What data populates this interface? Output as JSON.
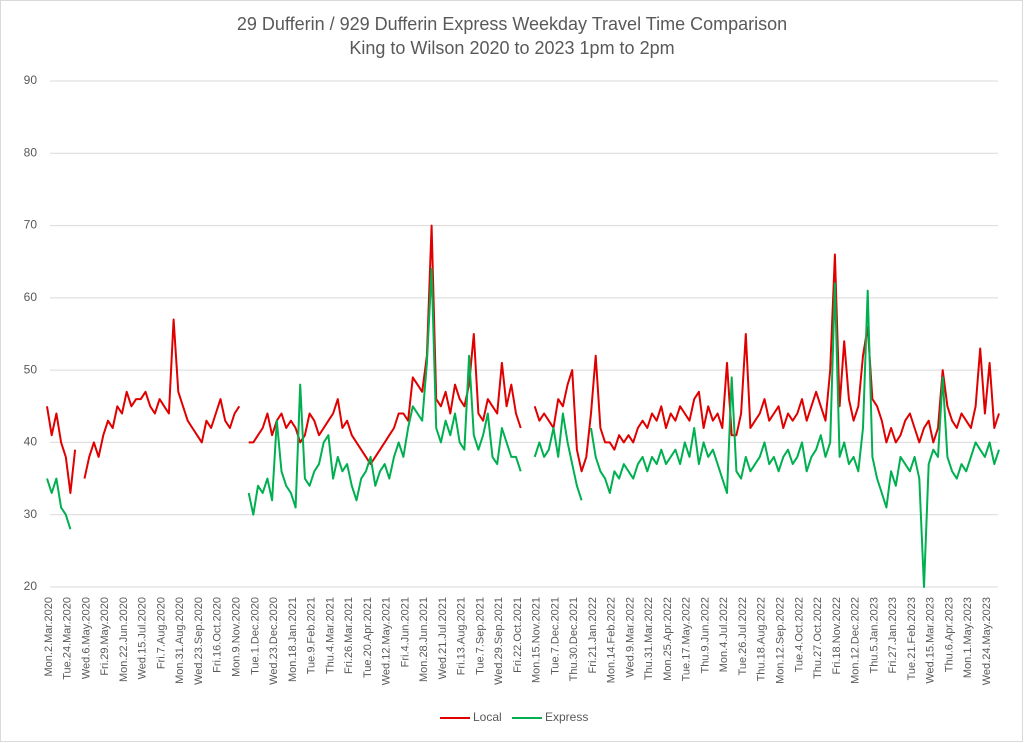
{
  "chart_data": {
    "type": "line",
    "title": "29 Dufferin / 929 Dufferin Express Weekday Travel Time Comparison",
    "subtitle": "King to Wilson 2020 to 2023 1pm to 2pm",
    "categories": [
      "Mon.2.Mar.2020",
      null,
      null,
      null,
      "Tue.24.Mar.2020",
      null,
      null,
      null,
      "Wed.6.May.2020",
      null,
      null,
      null,
      "Fri.29.May.2020",
      null,
      null,
      null,
      "Mon.22.Jun.2020",
      null,
      null,
      null,
      "Wed.15.Jul.2020",
      null,
      null,
      null,
      "Fri.7.Aug.2020",
      null,
      null,
      null,
      "Mon.31.Aug.2020",
      null,
      null,
      null,
      "Wed.23.Sep.2020",
      null,
      null,
      null,
      "Fri.16.Oct.2020",
      null,
      null,
      null,
      "Mon.9.Nov.2020",
      null,
      null,
      null,
      "Tue.1.Dec.2020",
      null,
      null,
      null,
      "Wed.23.Dec.2020",
      null,
      null,
      null,
      "Mon.18.Jan.2021",
      null,
      null,
      null,
      "Tue.9.Feb.2021",
      null,
      null,
      null,
      "Thu.4.Mar.2021",
      null,
      null,
      null,
      "Fri.26.Mar.2021",
      null,
      null,
      null,
      "Tue.20.Apr.2021",
      null,
      null,
      null,
      "Wed.12.May.2021",
      null,
      null,
      null,
      "Fri.4.Jun.2021",
      null,
      null,
      null,
      "Mon.28.Jun.2021",
      null,
      null,
      null,
      "Wed.21.Jul.2021",
      null,
      null,
      null,
      "Fri.13.Aug.2021",
      null,
      null,
      null,
      "Tue.7.Sep.2021",
      null,
      null,
      null,
      "Wed.29.Sep.2021",
      null,
      null,
      null,
      "Fri.22.Oct.2021",
      null,
      null,
      null,
      "Mon.15.Nov.2021",
      null,
      null,
      null,
      "Tue.7.Dec.2021",
      null,
      null,
      null,
      "Thu.30.Dec.2021",
      null,
      null,
      null,
      "Fri.21.Jan.2022",
      null,
      null,
      null,
      "Mon.14.Feb.2022",
      null,
      null,
      null,
      "Wed.9.Mar.2022",
      null,
      null,
      null,
      "Thu.31.Mar.2022",
      null,
      null,
      null,
      "Mon.25.Apr.2022",
      null,
      null,
      null,
      "Tue.17.May.2022",
      null,
      null,
      null,
      "Thu.9.Jun.2022",
      null,
      null,
      null,
      "Mon.4.Jul.2022",
      null,
      null,
      null,
      "Tue.26.Jul.2022",
      null,
      null,
      null,
      "Thu.18.Aug.2022",
      null,
      null,
      null,
      "Mon.12.Sep.2022",
      null,
      null,
      null,
      "Tue.4.Oct.2022",
      null,
      null,
      null,
      "Thu.27.Oct.2022",
      null,
      null,
      null,
      "Fri.18.Nov.2022",
      null,
      null,
      null,
      "Mon.12.Dec.2022",
      null,
      null,
      null,
      "Thu.5.Jan.2023",
      null,
      null,
      null,
      "Fri.27.Jan.2023",
      null,
      null,
      null,
      "Tue.21.Feb.2023",
      null,
      null,
      null,
      "Wed.15.Mar.2023",
      null,
      null,
      null,
      "Thu.6.Apr.2023",
      null,
      null,
      null,
      "Mon.1.May.2023",
      null,
      null,
      null,
      "Wed.24.May.2023",
      null,
      null,
      null
    ],
    "series": [
      {
        "name": "Local",
        "color": "#e00000",
        "values": [
          45,
          41,
          44,
          40,
          38,
          33,
          39,
          null,
          35,
          38,
          40,
          38,
          41,
          43,
          42,
          45,
          44,
          47,
          45,
          46,
          46,
          47,
          45,
          44,
          46,
          45,
          44,
          57,
          47,
          45,
          43,
          42,
          41,
          40,
          43,
          42,
          44,
          46,
          43,
          42,
          44,
          45,
          null,
          40,
          40,
          41,
          42,
          44,
          41,
          43,
          44,
          42,
          43,
          42,
          40,
          41,
          44,
          43,
          41,
          42,
          43,
          44,
          46,
          42,
          43,
          41,
          40,
          39,
          38,
          37,
          38,
          39,
          40,
          41,
          42,
          44,
          44,
          43,
          49,
          48,
          47,
          52,
          70,
          46,
          45,
          47,
          44,
          48,
          46,
          45,
          48,
          55,
          44,
          43,
          46,
          45,
          44,
          51,
          45,
          48,
          44,
          42,
          null,
          null,
          45,
          43,
          44,
          43,
          42,
          46,
          45,
          48,
          50,
          39,
          36,
          38,
          44,
          52,
          42,
          40,
          40,
          39,
          41,
          40,
          41,
          40,
          42,
          43,
          42,
          44,
          43,
          45,
          42,
          44,
          43,
          45,
          44,
          43,
          46,
          47,
          42,
          45,
          43,
          44,
          42,
          51,
          41,
          41,
          44,
          55,
          42,
          43,
          44,
          46,
          43,
          44,
          45,
          42,
          44,
          43,
          44,
          46,
          43,
          45,
          47,
          45,
          43,
          50,
          66,
          45,
          54,
          46,
          43,
          45,
          52,
          56,
          46,
          45,
          43,
          40,
          42,
          40,
          41,
          43,
          44,
          42,
          40,
          42,
          43,
          40,
          42,
          50,
          45,
          43,
          42,
          44,
          43,
          42,
          45,
          53,
          44,
          51,
          42,
          44
        ]
      },
      {
        "name": "Express",
        "color": "#00b050",
        "values": [
          35,
          33,
          35,
          31,
          30,
          28,
          null,
          null,
          null,
          null,
          null,
          null,
          null,
          null,
          null,
          null,
          null,
          null,
          null,
          null,
          null,
          null,
          null,
          null,
          null,
          null,
          null,
          null,
          null,
          null,
          null,
          null,
          null,
          null,
          null,
          null,
          null,
          null,
          null,
          null,
          null,
          null,
          null,
          33,
          30,
          34,
          33,
          35,
          32,
          43,
          36,
          34,
          33,
          31,
          48,
          35,
          34,
          36,
          37,
          40,
          41,
          35,
          38,
          36,
          37,
          34,
          32,
          35,
          36,
          38,
          34,
          36,
          37,
          35,
          38,
          40,
          38,
          42,
          45,
          44,
          43,
          51,
          64,
          42,
          40,
          43,
          41,
          44,
          40,
          39,
          52,
          41,
          39,
          41,
          44,
          38,
          37,
          42,
          40,
          38,
          38,
          36,
          null,
          null,
          38,
          40,
          38,
          39,
          42,
          38,
          44,
          40,
          37,
          34,
          32,
          null,
          42,
          38,
          36,
          35,
          33,
          36,
          35,
          37,
          36,
          35,
          37,
          38,
          36,
          38,
          37,
          39,
          37,
          38,
          39,
          37,
          40,
          38,
          42,
          37,
          40,
          38,
          39,
          37,
          35,
          33,
          49,
          36,
          35,
          38,
          36,
          37,
          38,
          40,
          37,
          38,
          36,
          38,
          39,
          37,
          38,
          40,
          36,
          38,
          39,
          41,
          38,
          40,
          62,
          38,
          40,
          37,
          38,
          36,
          42,
          61,
          38,
          35,
          33,
          31,
          36,
          34,
          38,
          37,
          36,
          38,
          35,
          20,
          37,
          39,
          38,
          49,
          38,
          36,
          35,
          37,
          36,
          38,
          40,
          39,
          38,
          40,
          37,
          39
        ]
      }
    ],
    "ylim": [
      20,
      90
    ],
    "yticks": [
      20,
      30,
      40,
      50,
      60,
      70,
      80,
      90
    ],
    "grid": true,
    "legend": "bottom"
  }
}
